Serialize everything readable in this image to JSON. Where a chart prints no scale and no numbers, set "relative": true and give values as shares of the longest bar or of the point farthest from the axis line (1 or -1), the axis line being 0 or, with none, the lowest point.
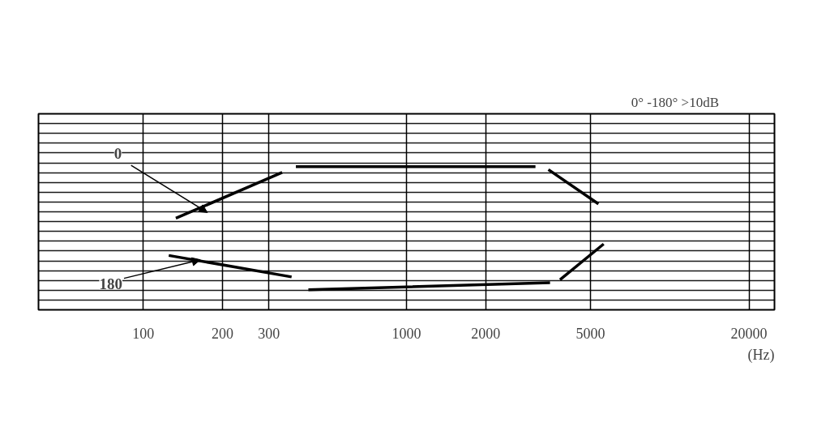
{
  "chart_data": {
    "type": "line",
    "title": "0°  -180°  >10dB",
    "xlabel": "(Hz)",
    "log": "x",
    "relative": true,
    "xlim": [
      40,
      25000
    ],
    "xticks": [
      100,
      200,
      300,
      1000,
      2000,
      5000,
      20000
    ],
    "grid": true,
    "marker": "none",
    "line_style": "solid",
    "series": [
      {
        "name": "0",
        "color": "#000000",
        "x": [
          133,
          337,
          360,
          380,
          3090,
          3300,
          3460,
          5360
        ],
        "values": [
          0.64,
          0.96,
          null,
          1,
          1,
          null,
          0.98,
          0.74
        ]
      },
      {
        "name": "180",
        "color": "#000000",
        "x": [
          125,
          366,
          395,
          424,
          3510,
          3650,
          3830,
          5610
        ],
        "values": [
          0.38,
          0.23,
          null,
          0.14,
          0.19,
          null,
          0.21,
          0.46
        ]
      }
    ]
  }
}
